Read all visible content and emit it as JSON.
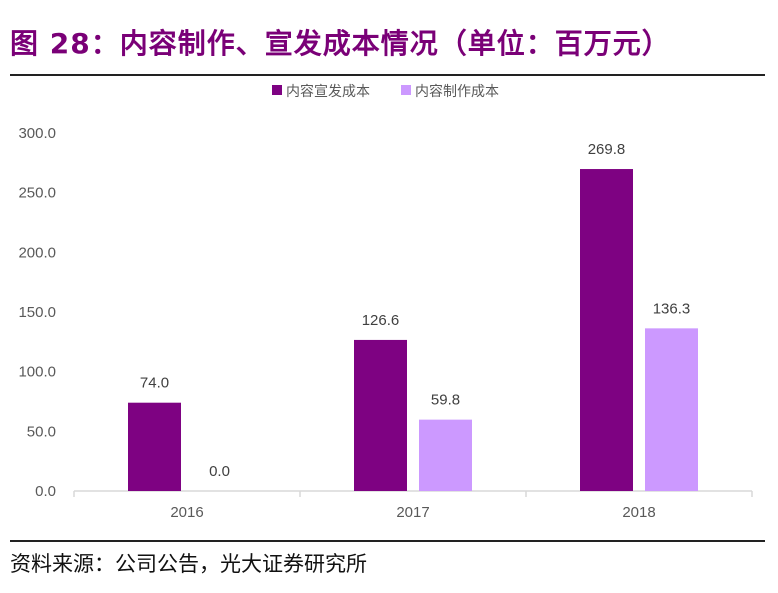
{
  "figure": {
    "title": "图 28：内容制作、宣发成本情况（单位：百万元）",
    "source": "资料来源：公司公告，光大证券研究所"
  },
  "colors": {
    "title": "#7a0077",
    "series_dark": "#7e0282",
    "series_light": "#cc99ff",
    "axis": "#d9d9d9",
    "tick_text": "#595959",
    "label_text": "#404040"
  },
  "chart_data": {
    "type": "bar",
    "categories": [
      "2016",
      "2017",
      "2018"
    ],
    "series": [
      {
        "name": "内容宣发成本",
        "values": [
          74.0,
          126.6,
          269.8
        ],
        "value_labels": [
          "74.0",
          "126.6",
          "269.8"
        ]
      },
      {
        "name": "内容制作成本",
        "values": [
          0.0,
          59.8,
          136.3
        ],
        "value_labels": [
          "0.0",
          "59.8",
          "136.3"
        ]
      }
    ],
    "ylim": [
      0,
      300
    ],
    "yticks": [
      0,
      50,
      100,
      150,
      200,
      250,
      300
    ],
    "ytick_labels": [
      "0.0",
      "50.0",
      "100.0",
      "150.0",
      "200.0",
      "250.0",
      "300.0"
    ],
    "legend_position": "top-center",
    "grid": false,
    "xlabel": "",
    "ylabel": ""
  }
}
